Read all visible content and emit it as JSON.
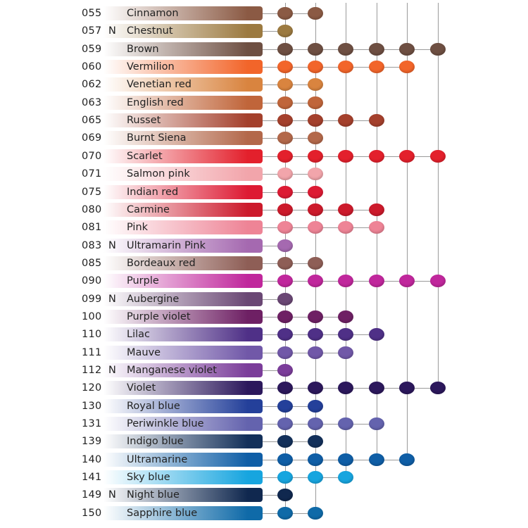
{
  "rows": [
    {
      "code": "055",
      "flag": "",
      "name": "Cinnamon",
      "color": "#8b5a44",
      "dots": 2
    },
    {
      "code": "057",
      "flag": "N",
      "name": "Chestnut",
      "color": "#9c7a40",
      "dots": 1
    },
    {
      "code": "059",
      "flag": "",
      "name": "Brown",
      "color": "#6e4f42",
      "dots": 6
    },
    {
      "code": "060",
      "flag": "",
      "name": "Vermilion",
      "color": "#f2652a",
      "dots": 5
    },
    {
      "code": "062",
      "flag": "",
      "name": "Venetian red",
      "color": "#d9843f",
      "dots": 2
    },
    {
      "code": "063",
      "flag": "",
      "name": "English red",
      "color": "#c0653a",
      "dots": 2
    },
    {
      "code": "065",
      "flag": "",
      "name": "Russet",
      "color": "#a4402c",
      "dots": 4
    },
    {
      "code": "069",
      "flag": "",
      "name": "Burnt Siena",
      "color": "#b3684a",
      "dots": 2
    },
    {
      "code": "070",
      "flag": "",
      "name": "Scarlet",
      "color": "#e3202c",
      "dots": 6
    },
    {
      "code": "071",
      "flag": "",
      "name": "Salmon pink",
      "color": "#f2a5ab",
      "dots": 2
    },
    {
      "code": "075",
      "flag": "",
      "name": "Indian red",
      "color": "#dd1a33",
      "dots": 2
    },
    {
      "code": "080",
      "flag": "",
      "name": "Carmine",
      "color": "#cc1a2b",
      "dots": 4
    },
    {
      "code": "081",
      "flag": "",
      "name": "Pink",
      "color": "#ee8496",
      "dots": 4
    },
    {
      "code": "083",
      "flag": "N",
      "name": "Ultramarin Pink",
      "color": "#a569b0",
      "dots": 1
    },
    {
      "code": "085",
      "flag": "",
      "name": "Bordeaux red",
      "color": "#8e5e56",
      "dots": 2
    },
    {
      "code": "090",
      "flag": "",
      "name": "Purple",
      "color": "#c0279c",
      "dots": 6
    },
    {
      "code": "099",
      "flag": "N",
      "name": "Aubergine",
      "color": "#6a4774",
      "dots": 1
    },
    {
      "code": "100",
      "flag": "",
      "name": "Purple violet",
      "color": "#6e2064",
      "dots": 3
    },
    {
      "code": "110",
      "flag": "",
      "name": "Lilac",
      "color": "#4f3087",
      "dots": 4
    },
    {
      "code": "111",
      "flag": "",
      "name": "Mauve",
      "color": "#7158a8",
      "dots": 3
    },
    {
      "code": "112",
      "flag": "N",
      "name": "Manganese violet",
      "color": "#7b3d9a",
      "dots": 1
    },
    {
      "code": "120",
      "flag": "",
      "name": "Violet",
      "color": "#2c185c",
      "dots": 6
    },
    {
      "code": "130",
      "flag": "",
      "name": "Royal blue",
      "color": "#24409a",
      "dots": 2
    },
    {
      "code": "131",
      "flag": "",
      "name": "Periwinkle blue",
      "color": "#6463ae",
      "dots": 4
    },
    {
      "code": "139",
      "flag": "",
      "name": "Indigo blue",
      "color": "#13305a",
      "dots": 2
    },
    {
      "code": "140",
      "flag": "",
      "name": "Ultramarine",
      "color": "#0f5ea6",
      "dots": 5
    },
    {
      "code": "141",
      "flag": "",
      "name": "Sky blue",
      "color": "#17a5df",
      "dots": 3
    },
    {
      "code": "149",
      "flag": "N",
      "name": "Night blue",
      "color": "#10284f",
      "dots": 1
    },
    {
      "code": "150",
      "flag": "",
      "name": "Sapphire blue",
      "color": "#0f6aa8",
      "dots": 2
    }
  ]
}
